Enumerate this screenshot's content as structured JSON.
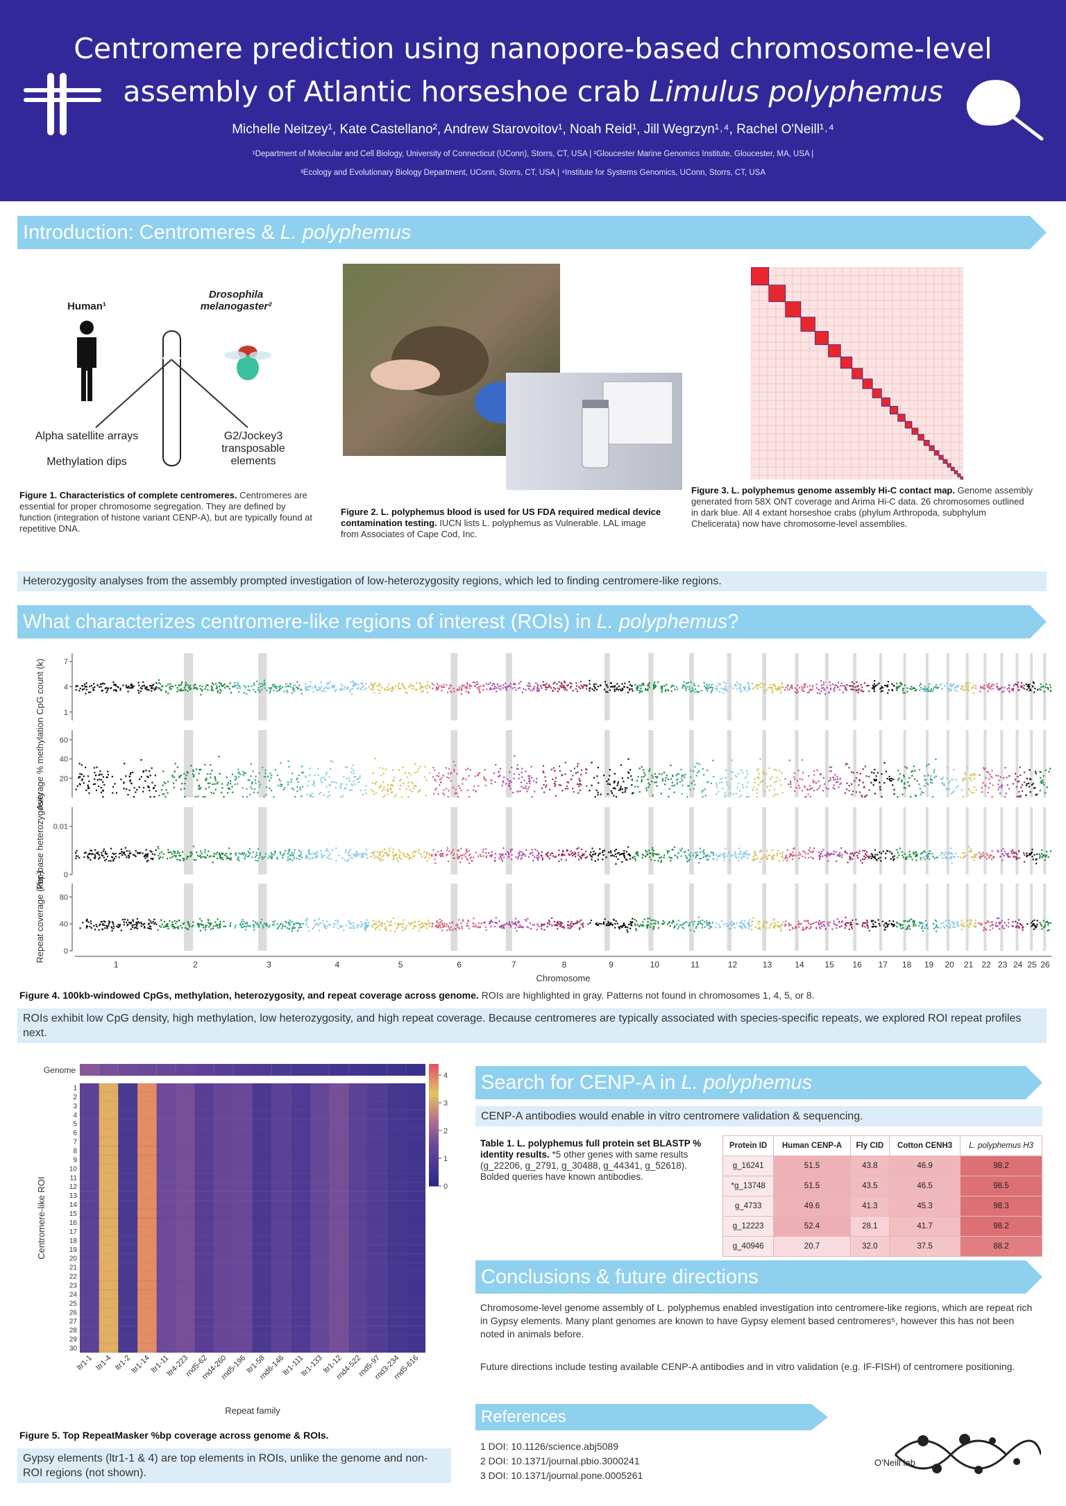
{
  "header": {
    "title_line1": "Centromere prediction using nanopore-based chromosome-level",
    "title_line2": "assembly of Atlantic horseshoe crab ",
    "title_italic": "Limulus polyphemus",
    "authors": "Michelle Neitzey¹, Kate Castellano², Andrew Starovoitov¹, Noah Reid¹, Jill Wegrzyn¹˒⁴, Rachel O'Neill¹˒⁴",
    "affiliations_line1": "¹Department of Molecular and Cell Biology, University of Connecticut (UConn), Storrs, CT, USA | ²Gloucester Marine Genomics Institute, Gloucester, MA, USA |",
    "affiliations_line2": "³Ecology and Evolutionary Biology Department, UConn, Storrs, CT, USA | ⁴Institute for Systems Genomics, UConn, Storrs, CT, USA"
  },
  "intro": {
    "banner": {
      "text": "Introduction: Centromeres & ",
      "italic": "L. polyphemus"
    },
    "figure1": {
      "human": "Human¹",
      "fly": "Drosophila melanogaster²",
      "label_alpha": "Alpha satellite arrays",
      "label_methylation": "Methylation dips",
      "label_g2": "G2/Jockey3 transposable elements",
      "caption_bold": "Figure 1. Characteristics of complete centromeres.",
      "caption": " Centromeres are essential for proper chromosome segregation. They are defined by function (integration of histone variant CENP-A), but are typically found at repetitive DNA."
    },
    "figure2": {
      "caption_bold": "Figure 2. L. polyphemus blood is used for US FDA required medical device contamination testing.",
      "caption": " IUCN lists L. polyphemus as Vulnerable. LAL image from Associates of Cape Cod, Inc."
    },
    "figure3": {
      "caption_bold": "Figure 3. L. polyphemus genome assembly Hi-C contact map.",
      "caption": " Genome assembly generated from 58X ONT coverage and Arima Hi-C data. 26 chromosomes outlined in dark blue. All 4 extant horseshoe crabs (phylum Arthropoda, subphylum Chelicerata) now have chromosome-level assemblies."
    },
    "note": "Heterozygosity analyses from the assembly prompted investigation of low-heterozygosity regions, which led to finding centromere-like regions."
  },
  "roi": {
    "banner": {
      "text": "What characterizes centromere-like regions of interest (ROIs) in ",
      "italic": "L. polyphemus",
      "end": "?"
    },
    "figure4": {
      "panels": [
        {
          "label": "CpG count (k)",
          "ylim": [
            0,
            8
          ],
          "ticks": [
            7,
            4,
            1
          ]
        },
        {
          "label": "Average % methylation",
          "ylim": [
            0,
            70
          ],
          "ticks": [
            60,
            40,
            20
          ]
        },
        {
          "label": "Per-base heterozygosity",
          "ylim": [
            0,
            0.014
          ],
          "ticks": [
            0.01,
            0
          ]
        },
        {
          "label": "Repeat coverage (kbp)",
          "ylim": [
            0,
            100
          ],
          "ticks": [
            80,
            40,
            0
          ]
        }
      ],
      "chromosomes": [
        "1",
        "2",
        "3",
        "4",
        "5",
        "6",
        "7",
        "8",
        "9",
        "10",
        "11",
        "12",
        "13",
        "14",
        "15",
        "16",
        "17",
        "18",
        "19",
        "20",
        "21",
        "22",
        "23",
        "24",
        "25",
        "26"
      ],
      "palette": [
        "#111111",
        "#1e8a3e",
        "#3aa88e",
        "#86c8ea",
        "#d8c055",
        "#d2607c",
        "#b050aa",
        "#982a5c"
      ],
      "x_label": "Chromosome",
      "caption_bold": "Figure 4. 100kb-windowed CpGs, methylation, heterozygosity, and repeat coverage across genome.",
      "caption": " ROIs are highlighted in gray. Patterns not found in chromosomes 1, 4, 5, or 8."
    },
    "note": "ROIs exhibit low CpG density, high methylation, low heterozygosity, and high repeat coverage. Because centromeres are typically associated with species-specific repeats, we explored ROI repeat profiles next."
  },
  "repeats": {
    "figure5": {
      "genome_label": "Genome",
      "y_label": "Centromere-like ROI",
      "x_label": "Repeat family",
      "families": [
        "ltr1-1",
        "ltr1-4",
        "ltr1-2",
        "ltr1-14",
        "ltr1-11",
        "ltr4-223",
        "rnd5-62",
        "rnd4-260",
        "rnd5-196",
        "ltr1-58",
        "rnd6-146",
        "ltr1-111",
        "ltr1-133",
        "ltr1-12",
        "rnd4-522",
        "rnd5-97",
        "rnd3-234",
        "rnd5-616"
      ],
      "genome_values": [
        1.8,
        1.6,
        1.5,
        1.4,
        1.3,
        1.2,
        1.1,
        1.0,
        0.9,
        0.8,
        0.7,
        0.6,
        0.6,
        0.5,
        0.5,
        0.4,
        0.4,
        0.3
      ],
      "roi_labels": [
        "1",
        "2",
        "3",
        "4",
        "5",
        "6",
        "7",
        "8",
        "9",
        "10",
        "11",
        "12",
        "13",
        "14",
        "15",
        "16",
        "17",
        "18",
        "19",
        "20",
        "21",
        "22",
        "23",
        "24",
        "25",
        "26",
        "27",
        "28",
        "29",
        "30"
      ],
      "roi_values": [
        1.1,
        3.5,
        0.7,
        3.8,
        1.5,
        1.6,
        1.0,
        1.3,
        1.4,
        0.7,
        1.1,
        0.8,
        1.3,
        1.6,
        1.1,
        0.9,
        0.6,
        0.5
      ],
      "colorbar_lim": [
        0,
        4.4
      ],
      "colorbar_ticks": [
        4,
        3,
        2,
        1,
        0
      ],
      "caption_bold": "Figure 5. Top RepeatMasker %bp coverage across genome & ROIs."
    },
    "note": "Gypsy elements (ltr1-1 & 4) are top elements in ROIs, unlike the genome and non-ROI regions (not shown)."
  },
  "cenpa": {
    "banner": {
      "text": "Search for CENP-A in ",
      "italic": "L. polyphemus"
    },
    "note": "CENP-A antibodies would enable in vitro centromere validation & sequencing.",
    "table_caption_bold": "Table 1. L. polyphemus full protein set BLASTP % identity results.",
    "table_caption": " *5 other genes with same results (g_22206, g_2791, g_30488, g_44341, g_52618). Bolded queries have known antibodies.",
    "table": {
      "header": [
        "Protein ID",
        "Human CENP-A",
        "Fly CID",
        "Cotton CENH3",
        "L. polyphemus H3"
      ],
      "rows": [
        [
          "g_16241",
          51.5,
          43.8,
          46.9,
          98.2
        ],
        [
          "*g_13748",
          51.5,
          43.5,
          46.5,
          98.5
        ],
        [
          "g_4733",
          49.6,
          41.3,
          45.3,
          98.3
        ],
        [
          "g_12223",
          52.4,
          28.1,
          41.7,
          98.2
        ],
        [
          "g_40946",
          20.7,
          {
            "value": 32,
            "label": "32.0"
          },
          37.5,
          88.2
        ]
      ]
    }
  },
  "conclusions": {
    "banner": "Conclusions & future directions",
    "paragraphs": [
      "Chromosome-level genome assembly of L. polyphemus enabled investigation into centromere-like regions, which are repeat rich in Gypsy elements. Many plant genomes are known to have Gypsy element based centromeres⁵, however this has not been noted in animals before.",
      "Future directions include testing available CENP-A antibodies and in vitro validation (e.g. IF-FISH) of centromere positioning."
    ]
  },
  "references": {
    "banner": "References",
    "items": [
      "1 DOI: 10.1126/science.abj5089",
      "2 DOI: 10.1371/journal.pbio.3000241",
      "3 DOI: 10.1371/journal.pone.0005261"
    ]
  },
  "logo": "O'Neill lab"
}
